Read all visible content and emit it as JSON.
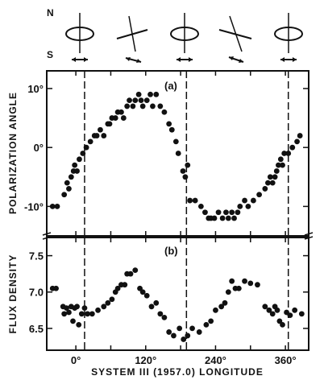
{
  "orientation_labels": {
    "north": "N",
    "south": "S"
  },
  "chart_data": [
    {
      "type": "scatter",
      "panel_label": "(a)",
      "ylabel": "POLARIZATION ANGLE",
      "xlabel": "SYSTEM III (1957.0) LONGITUDE",
      "xlim": [
        -50,
        400
      ],
      "ylim": [
        -15,
        13
      ],
      "yticks": [
        {
          "v": 10,
          "label": "10°"
        },
        {
          "v": 0,
          "label": "0°"
        },
        {
          "v": -10,
          "label": "-10°"
        }
      ],
      "vlines": [
        15,
        190,
        365
      ],
      "color": "#111111",
      "points": [
        [
          -40,
          -10
        ],
        [
          -32,
          -10
        ],
        [
          -20,
          -8
        ],
        [
          -15,
          -6
        ],
        [
          -12,
          -7
        ],
        [
          -8,
          -5
        ],
        [
          -4,
          -4
        ],
        [
          -2,
          -3
        ],
        [
          2,
          -4
        ],
        [
          6,
          -2
        ],
        [
          12,
          -1
        ],
        [
          18,
          0
        ],
        [
          25,
          1
        ],
        [
          32,
          2
        ],
        [
          36,
          2
        ],
        [
          42,
          3
        ],
        [
          48,
          2
        ],
        [
          55,
          4
        ],
        [
          58,
          4
        ],
        [
          62,
          5
        ],
        [
          68,
          5
        ],
        [
          72,
          6
        ],
        [
          78,
          6
        ],
        [
          82,
          5
        ],
        [
          88,
          7
        ],
        [
          92,
          8
        ],
        [
          98,
          7
        ],
        [
          102,
          8
        ],
        [
          108,
          9
        ],
        [
          112,
          8
        ],
        [
          115,
          7
        ],
        [
          122,
          8
        ],
        [
          128,
          9
        ],
        [
          132,
          7
        ],
        [
          138,
          9
        ],
        [
          145,
          7
        ],
        [
          152,
          6
        ],
        [
          160,
          4
        ],
        [
          165,
          3
        ],
        [
          172,
          1
        ],
        [
          176,
          -1
        ],
        [
          184,
          -4
        ],
        [
          188,
          -5
        ],
        [
          192,
          -3
        ],
        [
          196,
          -9
        ],
        [
          205,
          -9
        ],
        [
          215,
          -10
        ],
        [
          222,
          -11
        ],
        [
          228,
          -12
        ],
        [
          232,
          -12
        ],
        [
          238,
          -12
        ],
        [
          245,
          -11
        ],
        [
          252,
          -12
        ],
        [
          258,
          -11
        ],
        [
          262,
          -12
        ],
        [
          268,
          -11
        ],
        [
          272,
          -12
        ],
        [
          278,
          -11
        ],
        [
          282,
          -10
        ],
        [
          290,
          -9
        ],
        [
          296,
          -10
        ],
        [
          305,
          -9
        ],
        [
          315,
          -8
        ],
        [
          325,
          -7
        ],
        [
          330,
          -6
        ],
        [
          334,
          -5
        ],
        [
          338,
          -6
        ],
        [
          342,
          -5
        ],
        [
          345,
          -4
        ],
        [
          348,
          -3
        ],
        [
          352,
          -2
        ],
        [
          355,
          -3
        ],
        [
          358,
          -1
        ],
        [
          365,
          -1
        ],
        [
          372,
          0
        ],
        [
          380,
          1
        ],
        [
          385,
          2
        ]
      ]
    },
    {
      "type": "scatter",
      "panel_label": "(b)",
      "ylabel": "FLUX DENSITY",
      "xlabel": "SYSTEM III (1957.0) LONGITUDE",
      "xlim": [
        -50,
        400
      ],
      "ylim": [
        6.2,
        7.75
      ],
      "yticks": [
        {
          "v": 7.5,
          "label": "7.5"
        },
        {
          "v": 7.0,
          "label": "7.0"
        },
        {
          "v": 6.5,
          "label": "6.5"
        }
      ],
      "xticks": [
        {
          "v": 0,
          "label": "0°"
        },
        {
          "v": 120,
          "label": "120°"
        },
        {
          "v": 240,
          "label": "240°"
        },
        {
          "v": 360,
          "label": "360°"
        }
      ],
      "vlines": [
        15,
        190,
        365
      ],
      "color": "#111111",
      "points": [
        [
          -40,
          7.05
        ],
        [
          -34,
          7.05
        ],
        [
          -22,
          6.8
        ],
        [
          -20,
          6.7
        ],
        [
          -16,
          6.78
        ],
        [
          -12,
          6.72
        ],
        [
          -8,
          6.8
        ],
        [
          -5,
          6.6
        ],
        [
          -2,
          6.78
        ],
        [
          2,
          6.8
        ],
        [
          5,
          6.55
        ],
        [
          10,
          6.7
        ],
        [
          15,
          6.78
        ],
        [
          20,
          6.7
        ],
        [
          28,
          6.7
        ],
        [
          38,
          6.75
        ],
        [
          48,
          6.8
        ],
        [
          55,
          6.85
        ],
        [
          62,
          6.9
        ],
        [
          68,
          7.0
        ],
        [
          72,
          7.05
        ],
        [
          78,
          7.1
        ],
        [
          84,
          7.1
        ],
        [
          88,
          7.25
        ],
        [
          94,
          7.25
        ],
        [
          102,
          7.3
        ],
        [
          110,
          7.05
        ],
        [
          115,
          7.0
        ],
        [
          122,
          6.95
        ],
        [
          130,
          6.8
        ],
        [
          138,
          6.85
        ],
        [
          145,
          6.7
        ],
        [
          152,
          6.65
        ],
        [
          160,
          6.45
        ],
        [
          168,
          6.4
        ],
        [
          178,
          6.5
        ],
        [
          185,
          6.35
        ],
        [
          192,
          6.4
        ],
        [
          200,
          6.5
        ],
        [
          212,
          6.45
        ],
        [
          224,
          6.55
        ],
        [
          232,
          6.6
        ],
        [
          240,
          6.75
        ],
        [
          250,
          6.8
        ],
        [
          256,
          6.85
        ],
        [
          262,
          7.0
        ],
        [
          268,
          7.15
        ],
        [
          274,
          7.05
        ],
        [
          280,
          7.05
        ],
        [
          290,
          7.15
        ],
        [
          300,
          7.12
        ],
        [
          312,
          7.1
        ],
        [
          325,
          6.8
        ],
        [
          332,
          6.75
        ],
        [
          338,
          6.7
        ],
        [
          342,
          6.8
        ],
        [
          346,
          6.75
        ],
        [
          350,
          6.6
        ],
        [
          355,
          6.55
        ],
        [
          362,
          6.72
        ],
        [
          368,
          6.68
        ],
        [
          376,
          6.75
        ],
        [
          388,
          6.7
        ]
      ]
    }
  ]
}
